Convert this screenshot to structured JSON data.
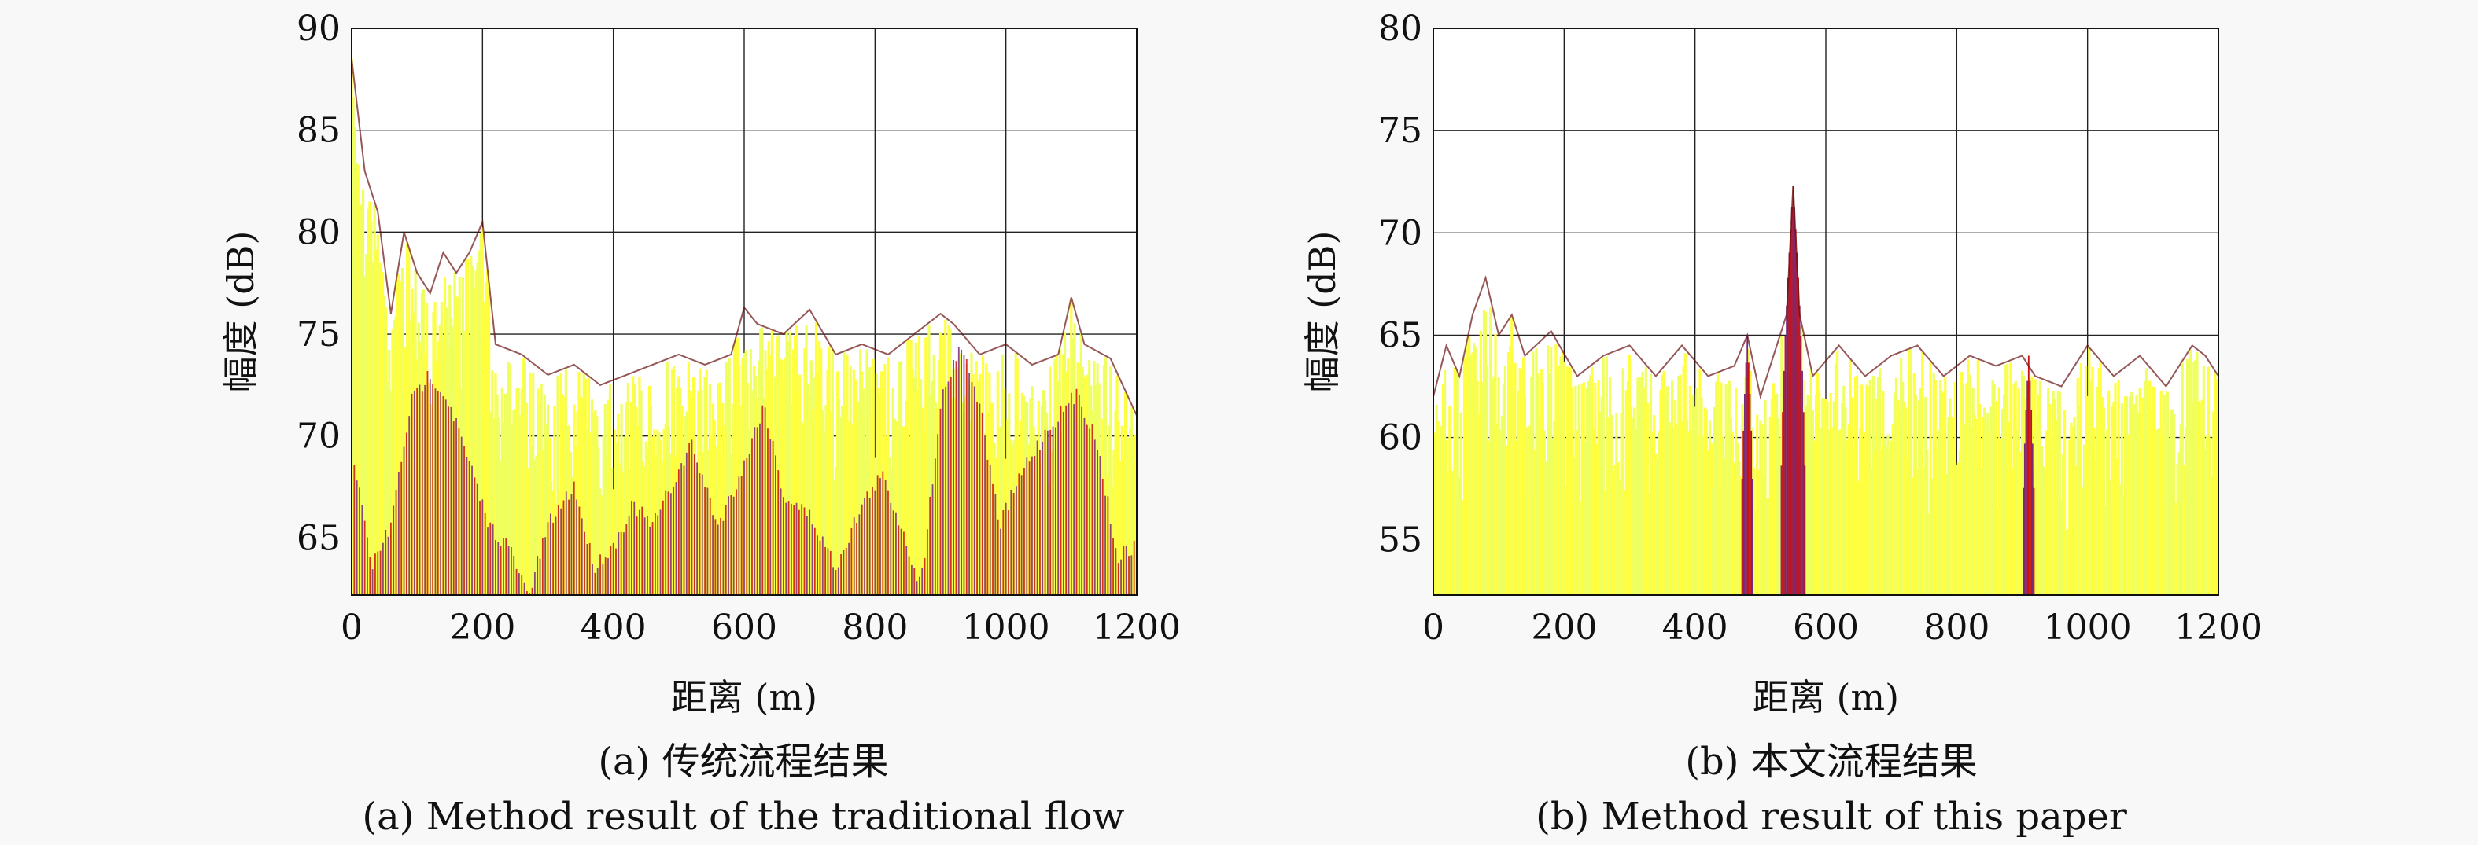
{
  "figure": {
    "panels": [
      {
        "id": "a",
        "caption_cn": "(a) 传统流程结果",
        "caption_en": "(a) Method result of the traditional flow"
      },
      {
        "id": "b",
        "caption_cn": "(b) 本文流程结果",
        "caption_en": "(b) Method result of this paper"
      }
    ]
  },
  "colors": {
    "red": "#cc1010",
    "yellow": "#ffff40",
    "lightYellow": "#f0ff60",
    "purple": "#7a2a7a",
    "grid": "#222222"
  },
  "chart_data": [
    {
      "type": "area",
      "title": "",
      "xlabel": "距离 (m)",
      "ylabel": "幅度 (dB)",
      "xlim": [
        0,
        1200
      ],
      "ylim": [
        62.2,
        90
      ],
      "xticks": [
        0,
        200,
        400,
        600,
        800,
        1000,
        1200
      ],
      "yticks": [
        65,
        70,
        75,
        80,
        85,
        90
      ],
      "grid": true,
      "series": [
        {
          "role": "envelope",
          "x": [
            0,
            20,
            40,
            60,
            80,
            100,
            120,
            140,
            160,
            180,
            200,
            220,
            260,
            300,
            340,
            380,
            420,
            460,
            500,
            540,
            580,
            600,
            620,
            660,
            700,
            740,
            780,
            820,
            860,
            900,
            920,
            960,
            1000,
            1040,
            1080,
            1100,
            1120,
            1160,
            1200
          ],
          "values": [
            88.5,
            83,
            81,
            76,
            80,
            78,
            77,
            79,
            78,
            79,
            80.5,
            74.5,
            74,
            73,
            73.5,
            72.5,
            73,
            73.5,
            74,
            73.5,
            74,
            76.3,
            75.5,
            75,
            76.2,
            74,
            74.5,
            74,
            75,
            76,
            75.5,
            74,
            74.5,
            73.5,
            74,
            76.8,
            74.5,
            73.8,
            71
          ]
        },
        {
          "role": "red-lobes",
          "x": [
            0,
            30,
            60,
            90,
            120,
            150,
            180,
            210,
            240,
            270,
            300,
            340,
            370,
            400,
            430,
            460,
            490,
            520,
            560,
            600,
            630,
            660,
            700,
            740,
            780,
            810,
            840,
            870,
            900,
            930,
            960,
            990,
            1030,
            1070,
            1110,
            1140,
            1170,
            1200
          ],
          "values": [
            70,
            64,
            66,
            72,
            73.5,
            72,
            69,
            66,
            65,
            62.5,
            66,
            68,
            64,
            65,
            67,
            66,
            68,
            70,
            66,
            69,
            72,
            67.5,
            66.5,
            64,
            67,
            68.5,
            66,
            63,
            72,
            75,
            72,
            66,
            69,
            71,
            72.5,
            70,
            64.5,
            65
          ]
        }
      ]
    },
    {
      "type": "area",
      "title": "",
      "xlabel": "距离 (m)",
      "ylabel": "幅度 (dB)",
      "xlim": [
        0,
        1200
      ],
      "ylim": [
        52.3,
        80
      ],
      "xticks": [
        0,
        200,
        400,
        600,
        800,
        1000,
        1200
      ],
      "yticks": [
        55,
        60,
        65,
        70,
        75,
        80
      ],
      "grid": true,
      "series": [
        {
          "role": "envelope",
          "x": [
            0,
            20,
            40,
            60,
            80,
            100,
            120,
            140,
            180,
            220,
            260,
            300,
            340,
            380,
            420,
            460,
            480,
            500,
            520,
            540,
            550,
            560,
            580,
            620,
            660,
            700,
            740,
            780,
            820,
            860,
            900,
            920,
            960,
            1000,
            1040,
            1080,
            1120,
            1160,
            1180,
            1200
          ],
          "values": [
            62,
            64.5,
            63,
            66,
            67.8,
            65,
            66,
            64,
            65.2,
            63,
            64,
            64.5,
            63,
            64.5,
            63,
            63.5,
            65,
            62,
            64,
            66,
            72.3,
            66,
            63,
            64.5,
            63,
            64,
            64.5,
            63,
            64,
            63.5,
            64,
            63,
            62.5,
            64.5,
            63,
            64,
            62.5,
            64.5,
            64,
            63
          ]
        },
        {
          "role": "red-spikes",
          "x": [
            480,
            550,
            910
          ],
          "values": [
            65,
            72.3,
            64
          ]
        }
      ]
    }
  ]
}
